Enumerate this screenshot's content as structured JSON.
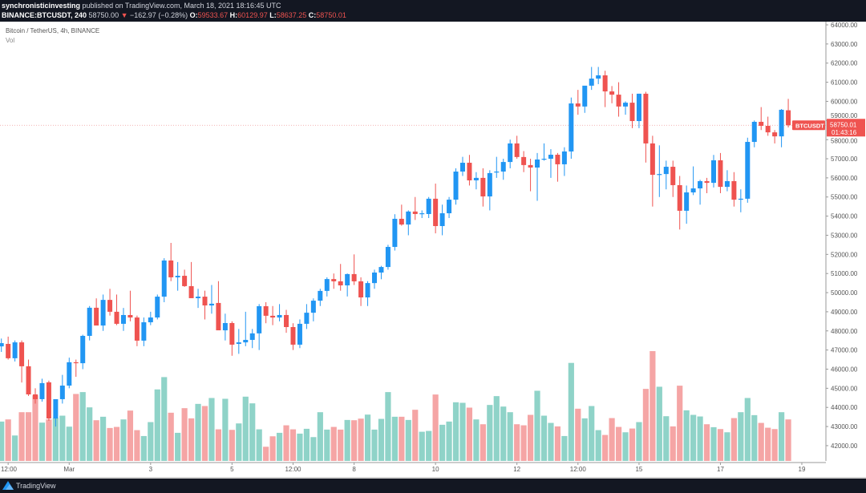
{
  "header": {
    "publisher": "synchronisticinvesting",
    "published_text": "published on TradingView.com, March 18, 2021 18:16:45 UTC",
    "symbol": "BINANCE:BTCUSDT, 240",
    "last": "58750.00",
    "change": "−162.97 (−0.28%)",
    "o_label": "O:",
    "o": "59533.67",
    "h_label": "H:",
    "h": "60129.97",
    "l_label": "L:",
    "l": "58637.25",
    "c_label": "C:",
    "c": "58750.01",
    "change_icon": "triangle-down-icon"
  },
  "legend": {
    "title": "Bitcoin / TetherUS, 4h, BINANCE",
    "volume": "Vol"
  },
  "price_tag": {
    "symbol": "BTCUSDT",
    "price": "58750.01",
    "countdown": "01:43:16"
  },
  "footer": {
    "brand": "TradingView"
  },
  "colors": {
    "up": "#2196f3",
    "down": "#ef5350",
    "vol_up": "#8fd3c8",
    "vol_down": "#f5a5a5",
    "bar": "#131722"
  },
  "chart_data": {
    "type": "candlestick",
    "interval": "4h",
    "ylim": [
      41000,
      64000
    ],
    "price_ticks": [
      "64000.00",
      "63000.00",
      "62000.00",
      "61000.00",
      "60000.00",
      "59000.00",
      "58000.00",
      "57000.00",
      "56000.00",
      "55000.00",
      "54000.00",
      "53000.00",
      "52000.00",
      "51000.00",
      "50000.00",
      "49000.00",
      "48000.00",
      "47000.00",
      "46000.00",
      "45000.00",
      "44000.00",
      "43000.00",
      "42000.00"
    ],
    "time_ticks": [
      {
        "label": "12:00",
        "time": "2021-02-27 12:00"
      },
      {
        "label": "Mar",
        "time": "2021-03-01 00:00"
      },
      {
        "label": "3",
        "time": "2021-03-03 00:00"
      },
      {
        "label": "5",
        "time": "2021-03-05 00:00"
      },
      {
        "label": "12:00",
        "time": "2021-03-06 12:00"
      },
      {
        "label": "8",
        "time": "2021-03-08 00:00"
      },
      {
        "label": "10",
        "time": "2021-03-10 00:00"
      },
      {
        "label": "12",
        "time": "2021-03-12 00:00"
      },
      {
        "label": "12:00",
        "time": "2021-03-13 12:00"
      },
      {
        "label": "15",
        "time": "2021-03-15 00:00"
      },
      {
        "label": "17",
        "time": "2021-03-17 00:00"
      },
      {
        "label": "19",
        "time": "2021-03-19 00:00"
      }
    ],
    "first_candle_time": "2021-02-27 08:00",
    "last_price": 58750.01,
    "candles_ohlc": [
      [
        47190,
        47600,
        46900,
        47360
      ],
      [
        47320,
        47700,
        46500,
        46570
      ],
      [
        46570,
        47500,
        46400,
        47400
      ],
      [
        47400,
        47500,
        45300,
        46150
      ],
      [
        46150,
        46500,
        44600,
        44680
      ],
      [
        44680,
        45000,
        44200,
        44430
      ],
      [
        44430,
        45500,
        44300,
        45270
      ],
      [
        45310,
        45400,
        43300,
        43420
      ],
      [
        43420,
        44400,
        43000,
        44430
      ],
      [
        44430,
        45700,
        44200,
        45140
      ],
      [
        45140,
        46600,
        45000,
        46360
      ],
      [
        46360,
        46500,
        45600,
        46310
      ],
      [
        46310,
        47800,
        46000,
        47740
      ],
      [
        47740,
        49300,
        47500,
        49210
      ],
      [
        49210,
        49700,
        48900,
        48280
      ],
      [
        48280,
        49900,
        48000,
        49620
      ],
      [
        49620,
        50200,
        48800,
        49000
      ],
      [
        49000,
        49900,
        48300,
        48370
      ],
      [
        48370,
        49200,
        48000,
        48830
      ],
      [
        48830,
        50100,
        48500,
        48700
      ],
      [
        48700,
        48800,
        47200,
        47490
      ],
      [
        47490,
        48700,
        47200,
        48450
      ],
      [
        48450,
        49000,
        48300,
        48700
      ],
      [
        48700,
        49900,
        48600,
        49790
      ],
      [
        49790,
        51800,
        49500,
        51680
      ],
      [
        51680,
        52600,
        50600,
        50800
      ],
      [
        50800,
        51600,
        50100,
        50880
      ],
      [
        50880,
        51200,
        50300,
        50340
      ],
      [
        50340,
        51600,
        49900,
        49710
      ],
      [
        49710,
        50200,
        49200,
        49790
      ],
      [
        49790,
        50100,
        48600,
        49330
      ],
      [
        49330,
        50400,
        48900,
        49420
      ],
      [
        49460,
        50600,
        48300,
        48030
      ],
      [
        48030,
        48900,
        47500,
        48410
      ],
      [
        48410,
        48500,
        46700,
        47280
      ],
      [
        47320,
        48100,
        46800,
        47400
      ],
      [
        47400,
        49000,
        47200,
        47530
      ],
      [
        47530,
        48100,
        47100,
        47870
      ],
      [
        47870,
        49400,
        47000,
        49290
      ],
      [
        49290,
        49500,
        48400,
        48790
      ],
      [
        48790,
        49300,
        48300,
        48700
      ],
      [
        48700,
        49400,
        48500,
        48830
      ],
      [
        48830,
        49100,
        47900,
        48200
      ],
      [
        48200,
        48400,
        47000,
        47280
      ],
      [
        47280,
        48600,
        47100,
        48370
      ],
      [
        48370,
        49400,
        48100,
        48950
      ],
      [
        48950,
        49700,
        48500,
        49580
      ],
      [
        49580,
        50200,
        49300,
        50090
      ],
      [
        50090,
        50800,
        49800,
        50710
      ],
      [
        50710,
        51000,
        50200,
        50590
      ],
      [
        50590,
        51500,
        50100,
        50380
      ],
      [
        50380,
        51000,
        49800,
        50970
      ],
      [
        50970,
        52000,
        50400,
        50590
      ],
      [
        50590,
        50800,
        49300,
        49750
      ],
      [
        49750,
        50600,
        49300,
        50500
      ],
      [
        50500,
        51200,
        50200,
        51050
      ],
      [
        51050,
        51400,
        50700,
        51340
      ],
      [
        51340,
        52500,
        51200,
        52390
      ],
      [
        52390,
        54100,
        52200,
        53860
      ],
      [
        53860,
        54600,
        53500,
        53560
      ],
      [
        53560,
        54300,
        53000,
        54240
      ],
      [
        54240,
        55000,
        53800,
        54110
      ],
      [
        54110,
        54300,
        53900,
        54150
      ],
      [
        54110,
        55000,
        53900,
        54910
      ],
      [
        54910,
        55700,
        53100,
        53480
      ],
      [
        53480,
        54600,
        53000,
        54150
      ],
      [
        54150,
        55000,
        53900,
        54860
      ],
      [
        54860,
        56500,
        54600,
        56330
      ],
      [
        56330,
        57100,
        56100,
        56790
      ],
      [
        56790,
        57200,
        55600,
        55870
      ],
      [
        55870,
        56300,
        55400,
        56000
      ],
      [
        56000,
        56500,
        54500,
        55030
      ],
      [
        55030,
        56400,
        54300,
        56250
      ],
      [
        56290,
        57100,
        56000,
        56330
      ],
      [
        56330,
        57000,
        55900,
        56830
      ],
      [
        56830,
        58000,
        56500,
        57800
      ],
      [
        57800,
        58200,
        57000,
        57090
      ],
      [
        57090,
        57400,
        56300,
        56670
      ],
      [
        56670,
        57000,
        55300,
        56540
      ],
      [
        56540,
        57300,
        54800,
        56960
      ],
      [
        56960,
        57800,
        56900,
        57000
      ],
      [
        57000,
        57500,
        56000,
        57210
      ],
      [
        57210,
        57300,
        55800,
        56710
      ],
      [
        56710,
        57600,
        56100,
        57380
      ],
      [
        57380,
        60200,
        57000,
        59890
      ],
      [
        59890,
        60600,
        59300,
        59730
      ],
      [
        59730,
        60700,
        59400,
        60820
      ],
      [
        60820,
        61800,
        60600,
        61190
      ],
      [
        61190,
        61800,
        60900,
        61360
      ],
      [
        61360,
        61600,
        59700,
        60520
      ],
      [
        60520,
        60800,
        59900,
        60350
      ],
      [
        60350,
        61000,
        59200,
        59730
      ],
      [
        59730,
        60000,
        59300,
        59930
      ],
      [
        59930,
        60400,
        58600,
        58970
      ],
      [
        58970,
        60400,
        58600,
        60400
      ],
      [
        60400,
        60500,
        56800,
        57800
      ],
      [
        57800,
        58200,
        54500,
        56160
      ],
      [
        56160,
        57700,
        55000,
        56200
      ],
      [
        56200,
        56900,
        55400,
        56580
      ],
      [
        56580,
        56900,
        55000,
        55620
      ],
      [
        55620,
        56100,
        53300,
        54280
      ],
      [
        54280,
        55600,
        53600,
        55240
      ],
      [
        55240,
        56600,
        55100,
        55450
      ],
      [
        55450,
        55900,
        54600,
        55830
      ],
      [
        55830,
        56000,
        55200,
        55740
      ],
      [
        55740,
        57200,
        55500,
        56920
      ],
      [
        56920,
        57300,
        55200,
        55530
      ],
      [
        55530,
        56400,
        55300,
        55830
      ],
      [
        55830,
        56300,
        54500,
        54860
      ],
      [
        54860,
        55400,
        54200,
        54910
      ],
      [
        54910,
        58100,
        54700,
        57880
      ],
      [
        57880,
        59000,
        57600,
        58930
      ],
      [
        58930,
        59700,
        58500,
        58720
      ],
      [
        58720,
        59200,
        58200,
        58380
      ],
      [
        58380,
        58500,
        57800,
        58170
      ],
      [
        58170,
        59600,
        57600,
        59560
      ],
      [
        59533.67,
        60129.97,
        58637.25,
        58750.01
      ]
    ],
    "volume_relative": [
      147,
      155,
      95,
      182,
      182,
      245,
      143,
      155,
      160,
      169,
      128,
      250,
      257,
      200,
      152,
      165,
      123,
      127,
      155,
      188,
      115,
      93,
      145,
      267,
      313,
      180,
      105,
      197,
      159,
      213,
      205,
      235,
      118,
      232,
      116,
      140,
      240,
      215,
      118,
      53,
      92,
      105,
      133,
      118,
      102,
      120,
      89,
      182,
      117,
      127,
      117,
      153,
      152,
      158,
      173,
      117,
      157,
      257,
      165,
      165,
      153,
      191,
      109,
      112,
      248,
      135,
      147,
      219,
      217,
      199,
      155,
      137,
      209,
      242,
      203,
      182,
      137,
      133,
      172,
      262,
      169,
      142,
      129,
      93,
      366,
      195,
      159,
      205,
      115,
      97,
      160,
      127,
      107,
      121,
      145,
      269,
      410,
      277,
      167,
      129,
      281,
      189,
      172,
      166,
      137,
      126,
      119,
      107,
      160,
      182,
      235,
      171,
      142,
      124,
      119,
      182,
      155
    ]
  }
}
